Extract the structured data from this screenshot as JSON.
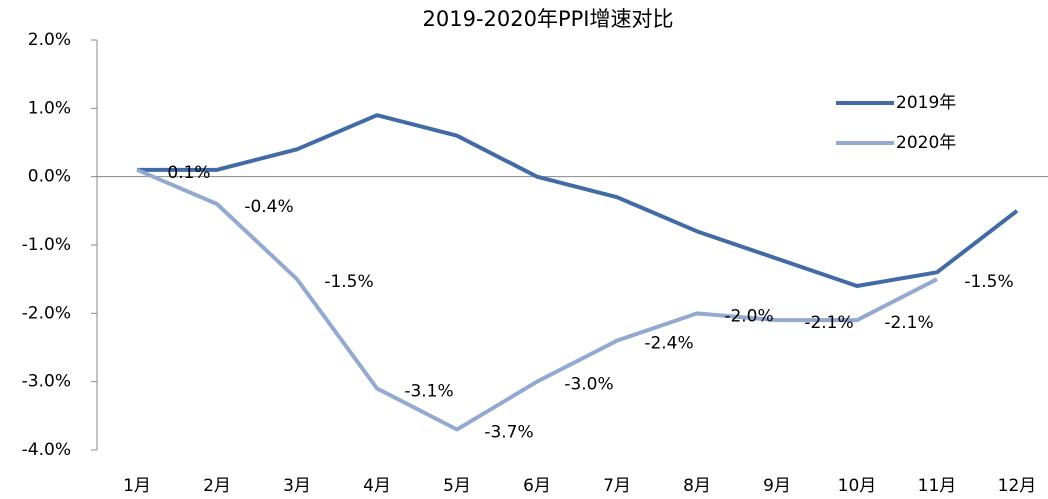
{
  "chart_data": {
    "type": "line",
    "title": "2019-2020年PPI增速对比",
    "categories": [
      "1月",
      "2月",
      "3月",
      "4月",
      "5月",
      "6月",
      "7月",
      "8月",
      "9月",
      "10月",
      "11月",
      "12月"
    ],
    "series": [
      {
        "name": "2019年",
        "color": "#426ba6",
        "values": [
          0.1,
          0.1,
          0.4,
          0.9,
          0.6,
          0.0,
          -0.3,
          -0.8,
          -1.2,
          -1.6,
          -1.4,
          -0.5
        ]
      },
      {
        "name": "2020年",
        "color": "#93a9d0",
        "values": [
          0.1,
          -0.4,
          -1.5,
          -3.1,
          -3.7,
          -3.0,
          -2.4,
          -2.0,
          -2.1,
          -2.1,
          -1.5,
          null
        ],
        "value_labels": [
          "0.1%",
          "-0.4%",
          "-1.5%",
          "-3.1%",
          "-3.7%",
          "-3.0%",
          "-2.4%",
          "-2.0%",
          "-2.1%",
          "-2.1%",
          "-1.5%",
          null
        ]
      }
    ],
    "ylim": [
      -4,
      2
    ],
    "yticks": [
      {
        "value": 2,
        "label": "2.0%"
      },
      {
        "value": 1,
        "label": "1.0%"
      },
      {
        "value": 0,
        "label": "0.0%"
      },
      {
        "value": -1,
        "label": "-1.0%"
      },
      {
        "value": -2,
        "label": "-2.0%"
      },
      {
        "value": -3,
        "label": "-3.0%"
      },
      {
        "value": -4,
        "label": "-4.0%"
      }
    ],
    "legend": "upper-right"
  }
}
